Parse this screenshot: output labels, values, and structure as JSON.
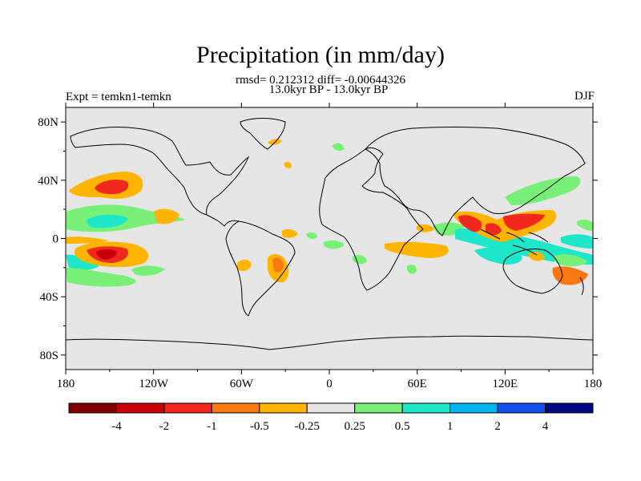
{
  "title": "Precipitation (in mm/day)",
  "stats_line": "rmsd= 0.212312 diff= -0.00644326",
  "period_line": "13.0kyr BP - 13.0kyr BP",
  "experiment_label": "Expt = temkn1-temkn",
  "season_label": "DJF",
  "map": {
    "lat_ticks": [
      "80N",
      "40N",
      "0",
      "40S",
      "80S"
    ],
    "lon_ticks": [
      "180",
      "120W",
      "60W",
      "0",
      "60E",
      "120E",
      "180"
    ],
    "background_color": "#e6e6e6"
  },
  "colorbar": {
    "colors": [
      "#7f0000",
      "#c8000a",
      "#f0281e",
      "#fa7814",
      "#ffb400",
      "#e6e6e6",
      "#78f078",
      "#1ee6c8",
      "#00b4f0",
      "#1450f0",
      "#000a82"
    ],
    "labels": [
      "-4",
      "-2",
      "-1",
      "-0.5",
      "-0.25",
      "0.25",
      "0.5",
      "1",
      "2",
      "4"
    ]
  },
  "anomaly_regions": [
    {
      "name": "central-pacific-orange-north",
      "color": "#ffb400"
    },
    {
      "name": "central-pacific-red-north",
      "color": "#f0281e"
    },
    {
      "name": "east-pacific-green-band",
      "color": "#78f078"
    },
    {
      "name": "east-pacific-cyan-band",
      "color": "#1ee6c8"
    },
    {
      "name": "south-pacific-orange",
      "color": "#ffb400"
    },
    {
      "name": "south-pacific-red",
      "color": "#f0281e"
    },
    {
      "name": "south-pacific-darkred",
      "color": "#c8000a"
    },
    {
      "name": "south-pacific-cyan",
      "color": "#1ee6c8"
    },
    {
      "name": "south-pacific-green",
      "color": "#78f078"
    },
    {
      "name": "brazil-orange",
      "color": "#ffb400"
    },
    {
      "name": "brazil-red",
      "color": "#fa7814"
    },
    {
      "name": "africa-indian-orange",
      "color": "#ffb400"
    },
    {
      "name": "africa-green",
      "color": "#78f078"
    },
    {
      "name": "maritime-orange",
      "color": "#ffb400"
    },
    {
      "name": "maritime-red",
      "color": "#f0281e"
    },
    {
      "name": "maritime-cyan",
      "color": "#1ee6c8"
    },
    {
      "name": "west-pacific-green",
      "color": "#78f078"
    },
    {
      "name": "australia-cyan",
      "color": "#1ee6c8"
    },
    {
      "name": "australia-orange",
      "color": "#fa7814"
    }
  ]
}
